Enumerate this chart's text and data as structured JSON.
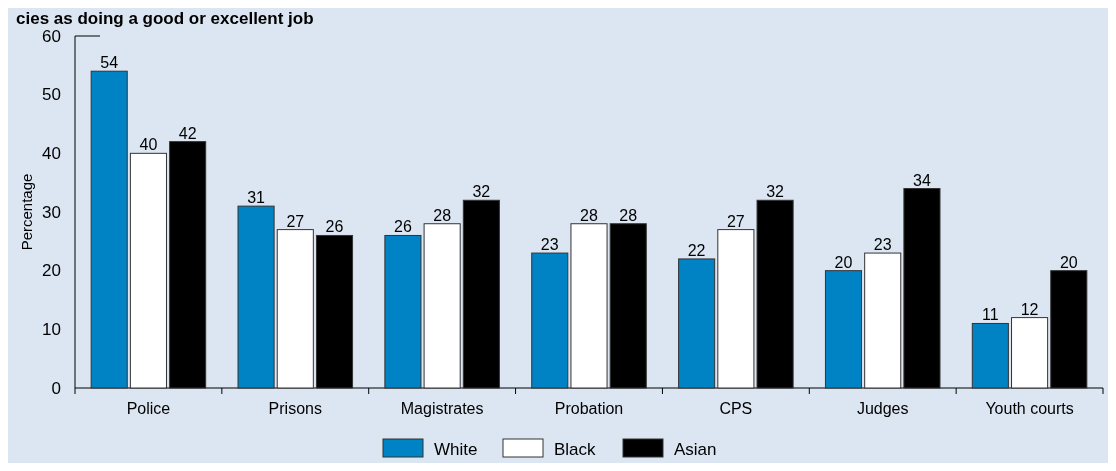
{
  "chart_data": {
    "type": "bar",
    "title": "cies as doing a good or excellent job",
    "ylabel": "Percentage",
    "categories": [
      "Police",
      "Prisons",
      "Magistrates",
      "Probation",
      "CPS",
      "Judges",
      "Youth courts"
    ],
    "series": [
      {
        "name": "White",
        "color": "#0083c4",
        "values": [
          54,
          31,
          26,
          23,
          22,
          20,
          11
        ]
      },
      {
        "name": "Black",
        "color": "#ffffff",
        "values": [
          40,
          27,
          28,
          28,
          27,
          23,
          12
        ]
      },
      {
        "name": "Asian",
        "color": "#000000",
        "values": [
          42,
          26,
          32,
          28,
          32,
          34,
          20
        ]
      }
    ],
    "ylim": [
      0,
      60
    ],
    "yticks": [
      0,
      10,
      20,
      30,
      40,
      50,
      60
    ],
    "data_labels": true,
    "legend": "bottom"
  }
}
